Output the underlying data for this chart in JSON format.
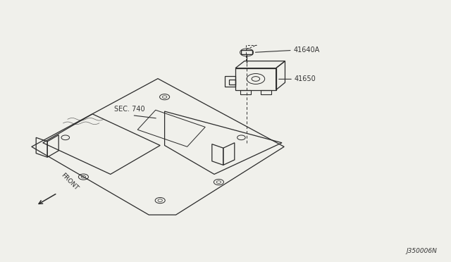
{
  "bg_color": "#f0f0eb",
  "line_color": "#2a2a2a",
  "label_color": "#333333",
  "diagram_code": "J350006N",
  "sec_label": "SEC. 740",
  "front_label": "FRONT",
  "part_41640A": "41640A",
  "part_41650": "41650"
}
